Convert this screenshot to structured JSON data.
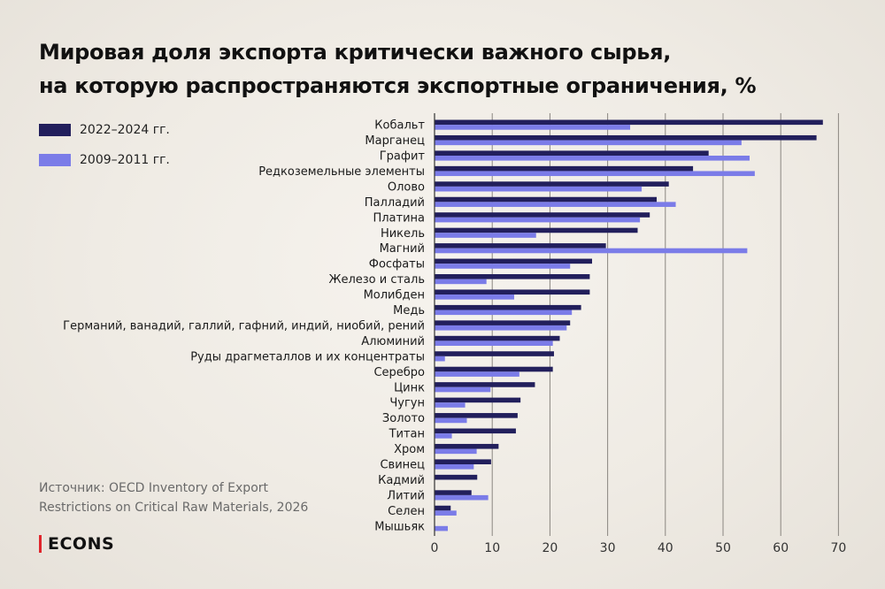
{
  "header": {
    "title_line1": "Мировая доля экспорта критически важного сырья,",
    "title_line2": "на которую распространяются экспортные ограничения, %"
  },
  "legend": [
    {
      "label": "2022–2024 гг.",
      "color": "#221f5c"
    },
    {
      "label": "2009–2011 гг.",
      "color": "#7b7ce8"
    }
  ],
  "source": {
    "line1": "Источник: OECD Inventory of Export",
    "line2": "Restrictions on Critical Raw Materials, 2026"
  },
  "logo": {
    "text": "ECONS",
    "accent": "#e0262d"
  },
  "chart_data": {
    "type": "bar",
    "orientation": "horizontal",
    "categories": [
      "Кобальт",
      "Марганец",
      "Графит",
      "Редкоземельные элементы",
      "Олово",
      "Палладий",
      "Платина",
      "Никель",
      "Магний",
      "Фосфаты",
      "Железо и сталь",
      "Молибден",
      "Медь",
      "Германий, ванадий, галлий, гафний, индий, ниобий, рений",
      "Алюминий",
      "Руды драгметаллов и их концентраты",
      "Серебро",
      "Цинк",
      "Чугун",
      "Золото",
      "Титан",
      "Хром",
      "Свинец",
      "Кадмий",
      "Литий",
      "Селен",
      "Мышьяк"
    ],
    "series": [
      {
        "name": "2022–2024 гг.",
        "color": "#221f5c",
        "values": [
          67.3,
          66.2,
          47.5,
          44.8,
          40.6,
          38.5,
          37.3,
          35.2,
          29.7,
          27.3,
          26.9,
          26.9,
          25.4,
          23.5,
          21.7,
          20.7,
          20.5,
          17.4,
          14.9,
          14.4,
          14.1,
          11.1,
          9.8,
          7.4,
          6.4,
          2.8,
          0
        ]
      },
      {
        "name": "2009–2011 гг.",
        "color": "#7b7ce8",
        "values": [
          33.9,
          53.2,
          54.6,
          55.5,
          35.9,
          41.8,
          35.6,
          17.6,
          54.2,
          23.5,
          9.0,
          13.8,
          23.8,
          22.9,
          20.5,
          1.8,
          14.7,
          9.7,
          5.3,
          5.6,
          3.0,
          7.3,
          6.8,
          0,
          9.3,
          3.8,
          2.3
        ]
      }
    ],
    "xlim": [
      0,
      70
    ],
    "xticks": [
      0,
      10,
      20,
      30,
      40,
      50,
      60,
      70
    ],
    "grid": true
  }
}
